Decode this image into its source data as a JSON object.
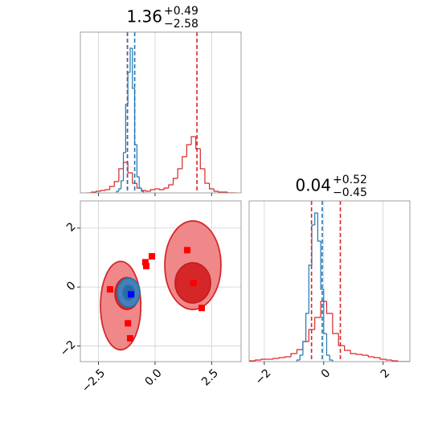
{
  "chart_data": [
    {
      "type": "histogram",
      "title": {
        "base": "1.36",
        "plus": "+0.49",
        "minus": "−2.58"
      },
      "xlim": [
        -3.3,
        3.8
      ],
      "xticks": [
        -2.5,
        0,
        2.5
      ],
      "ylim": [
        0,
        200
      ],
      "grid": true,
      "series": [
        {
          "color": "#d62728",
          "bins": [
            -3.0,
            -2.8,
            -2.6,
            -2.4,
            -2.2,
            -2.0,
            -1.8,
            -1.6,
            -1.4,
            -1.2,
            -1.0,
            -0.8,
            -0.6,
            -0.4,
            -0.2,
            0.0,
            0.2,
            0.4,
            0.6,
            0.8,
            1.0,
            1.2,
            1.4,
            1.6,
            1.8,
            2.0,
            2.2,
            2.4,
            2.6,
            2.8,
            3.0,
            3.2,
            3.4,
            3.6
          ],
          "values": [
            0,
            1,
            2,
            3,
            4,
            8,
            14,
            30,
            38,
            25,
            12,
            6,
            3,
            2,
            4,
            5,
            4,
            6,
            10,
            18,
            30,
            45,
            60,
            70,
            55,
            30,
            12,
            5,
            2,
            1,
            1,
            0,
            0
          ]
        },
        {
          "color": "#1f77b4",
          "bins": [
            -1.7,
            -1.6,
            -1.5,
            -1.4,
            -1.3,
            -1.2,
            -1.1,
            -1.0,
            -0.9,
            -0.8,
            -0.7,
            -0.6,
            -0.5
          ],
          "values": [
            2,
            5,
            15,
            50,
            110,
            150,
            180,
            130,
            60,
            20,
            6,
            2
          ]
        }
      ],
      "quantiles": [
        {
          "color": "#d62728",
          "values": [
            -1.22,
            1.85
          ]
        },
        {
          "color": "#1f77b4",
          "values": [
            -1.22,
            -0.9
          ]
        }
      ]
    },
    {
      "type": "contour",
      "xlim": [
        -3.3,
        3.8
      ],
      "ylim": [
        -2.53,
        2.92
      ],
      "xticks": [
        {
          "value": -2.5,
          "label": "−2.5"
        },
        {
          "value": 0,
          "label": "0.0"
        },
        2.5
      ],
      "yticks": [
        {
          "value": -2,
          "label": "−2"
        },
        0,
        2
      ],
      "grid": true,
      "contours": [
        {
          "fill": "#f0888a",
          "stroke": "#d62728",
          "cx": -1.52,
          "cy": -0.63,
          "rx": 0.89,
          "ry": 1.5
        },
        {
          "fill": "#f0888a",
          "stroke": "#d62728",
          "cx": 1.67,
          "cy": 0.74,
          "rx": 1.24,
          "ry": 1.5
        },
        {
          "fill": "#d62728",
          "stroke": "#c41e1e",
          "cx": -1.24,
          "cy": -0.22,
          "rx": 0.53,
          "ry": 0.54
        },
        {
          "fill": "#d62728",
          "stroke": "#c41e1e",
          "cx": 1.67,
          "cy": 0.14,
          "rx": 0.78,
          "ry": 0.68
        },
        {
          "fill": "#4a7fb5",
          "stroke": "#1f77b4",
          "cx": -1.17,
          "cy": -0.19,
          "rx": 0.5,
          "ry": 0.49
        },
        {
          "fill": "#2a6aa8",
          "stroke": "#1f77b4",
          "cx": -1.17,
          "cy": -0.19,
          "rx": 0.25,
          "ry": 0.25
        }
      ],
      "points": [
        {
          "color": "#ff0000",
          "x": [
            -1.99,
            -1.2,
            -1.1,
            -0.39,
            -0.43,
            -0.14,
            1.42,
            1.7,
            2.06
          ],
          "y": [
            -0.08,
            -1.23,
            -1.74,
            0.71,
            0.84,
            1.04,
            1.25,
            0.14,
            -0.71
          ]
        },
        {
          "color": "#0000ff",
          "x": [
            -1.06
          ],
          "y": [
            -0.25
          ]
        }
      ]
    },
    {
      "type": "histogram",
      "title": {
        "base": "0.04",
        "plus": "+0.52",
        "minus": "−0.45"
      },
      "xlim": [
        -2.51,
        2.9
      ],
      "xticks": [
        {
          "value": -2,
          "label": "−2"
        },
        0,
        2
      ],
      "ylim": [
        0,
        200
      ],
      "grid": true,
      "series": [
        {
          "color": "#d62728",
          "bins": [
            -2.5,
            -2.3,
            -2.1,
            -1.9,
            -1.7,
            -1.5,
            -1.3,
            -1.1,
            -0.9,
            -0.7,
            -0.5,
            -0.3,
            -0.1,
            0.1,
            0.3,
            0.5,
            0.7,
            0.9,
            1.1,
            1.3,
            1.5,
            1.7,
            1.9,
            2.1,
            2.3,
            2.5,
            2.7,
            2.9
          ],
          "values": [
            1,
            2,
            3,
            3,
            4,
            5,
            6,
            10,
            15,
            25,
            40,
            55,
            75,
            60,
            35,
            20,
            14,
            10,
            9,
            8,
            6,
            5,
            3,
            2,
            1,
            0,
            0
          ]
        },
        {
          "color": "#1f77b4",
          "bins": [
            -0.9,
            -0.8,
            -0.7,
            -0.6,
            -0.5,
            -0.4,
            -0.3,
            -0.2,
            -0.1,
            0.0,
            0.1,
            0.2,
            0.3
          ],
          "values": [
            2,
            8,
            25,
            60,
            120,
            170,
            185,
            150,
            90,
            35,
            8,
            2
          ]
        }
      ],
      "quantiles": [
        {
          "color": "#d62728",
          "values": [
            -0.41,
            0.56
          ]
        },
        {
          "color": "#1f77b4",
          "values": [
            -0.05
          ]
        }
      ]
    }
  ]
}
